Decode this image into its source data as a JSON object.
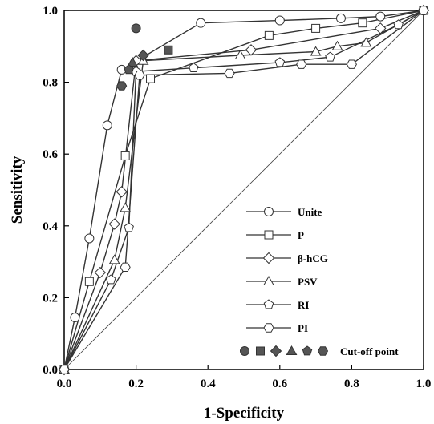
{
  "chart_data": {
    "type": "line",
    "xlabel": "1-Specificity",
    "ylabel": "Sensitivity",
    "xlim": [
      0,
      1
    ],
    "ylim": [
      0,
      1
    ],
    "x_ticks": [
      "0.0",
      "0.2",
      "0.4",
      "0.6",
      "0.8",
      "1.0"
    ],
    "y_ticks": [
      "0.0",
      "0.2",
      "0.4",
      "0.6",
      "0.8",
      "1.0"
    ],
    "grid": false,
    "legend_position": "bottom-right",
    "reference_line": {
      "from": [
        0,
        0
      ],
      "to": [
        1,
        1
      ]
    },
    "series": [
      {
        "name": "Unite",
        "marker": "circle",
        "points": [
          [
            0,
            0
          ],
          [
            0.03,
            0.145
          ],
          [
            0.07,
            0.365
          ],
          [
            0.12,
            0.68
          ],
          [
            0.16,
            0.835
          ],
          [
            0.38,
            0.965
          ],
          [
            0.6,
            0.972
          ],
          [
            0.77,
            0.978
          ],
          [
            0.88,
            0.983
          ],
          [
            1.0,
            1.0
          ]
        ]
      },
      {
        "name": "P",
        "marker": "square",
        "points": [
          [
            0,
            0
          ],
          [
            0.07,
            0.245
          ],
          [
            0.17,
            0.595
          ],
          [
            0.24,
            0.81
          ],
          [
            0.57,
            0.93
          ],
          [
            0.7,
            0.95
          ],
          [
            0.83,
            0.965
          ],
          [
            1.0,
            1.0
          ]
        ]
      },
      {
        "name": "β-hCG",
        "marker": "diamond",
        "points": [
          [
            0,
            0
          ],
          [
            0.1,
            0.27
          ],
          [
            0.14,
            0.405
          ],
          [
            0.16,
            0.495
          ],
          [
            0.2,
            0.86
          ],
          [
            0.52,
            0.89
          ],
          [
            0.88,
            0.95
          ],
          [
            1.0,
            1.0
          ]
        ]
      },
      {
        "name": "PSV",
        "marker": "triangle",
        "points": [
          [
            0,
            0
          ],
          [
            0.14,
            0.305
          ],
          [
            0.17,
            0.45
          ],
          [
            0.22,
            0.86
          ],
          [
            0.49,
            0.875
          ],
          [
            0.7,
            0.885
          ],
          [
            0.76,
            0.9
          ],
          [
            0.84,
            0.91
          ],
          [
            1.0,
            1.0
          ]
        ]
      },
      {
        "name": "RI",
        "marker": "pentagon",
        "points": [
          [
            0,
            0
          ],
          [
            0.13,
            0.25
          ],
          [
            0.18,
            0.395
          ],
          [
            0.2,
            0.83
          ],
          [
            0.36,
            0.84
          ],
          [
            0.6,
            0.855
          ],
          [
            0.74,
            0.87
          ],
          [
            0.93,
            0.96
          ],
          [
            1.0,
            1.0
          ]
        ]
      },
      {
        "name": "PI",
        "marker": "hexagon",
        "points": [
          [
            0,
            0
          ],
          [
            0.17,
            0.285
          ],
          [
            0.21,
            0.82
          ],
          [
            0.46,
            0.825
          ],
          [
            0.66,
            0.85
          ],
          [
            0.8,
            0.85
          ],
          [
            1.0,
            1.0
          ]
        ]
      }
    ],
    "cutoff_points": [
      {
        "series": "Unite",
        "marker": "circle",
        "x": 0.2,
        "y": 0.95
      },
      {
        "series": "P",
        "marker": "square",
        "x": 0.29,
        "y": 0.89
      },
      {
        "series": "β-hCG",
        "marker": "diamond",
        "x": 0.22,
        "y": 0.875
      },
      {
        "series": "PSV",
        "marker": "triangle",
        "x": 0.19,
        "y": 0.855
      },
      {
        "series": "RI",
        "marker": "pentagon",
        "x": 0.18,
        "y": 0.835
      },
      {
        "series": "PI",
        "marker": "hexagon",
        "x": 0.16,
        "y": 0.79
      }
    ],
    "legend": {
      "items": [
        "Unite",
        "P",
        "β-hCG",
        "PSV",
        "RI",
        "PI"
      ],
      "cutoff_label": "Cut-off point"
    },
    "colors": {
      "line": "#333333",
      "marker_fill": "#ffffff",
      "cutoff_fill": "#555555"
    }
  }
}
